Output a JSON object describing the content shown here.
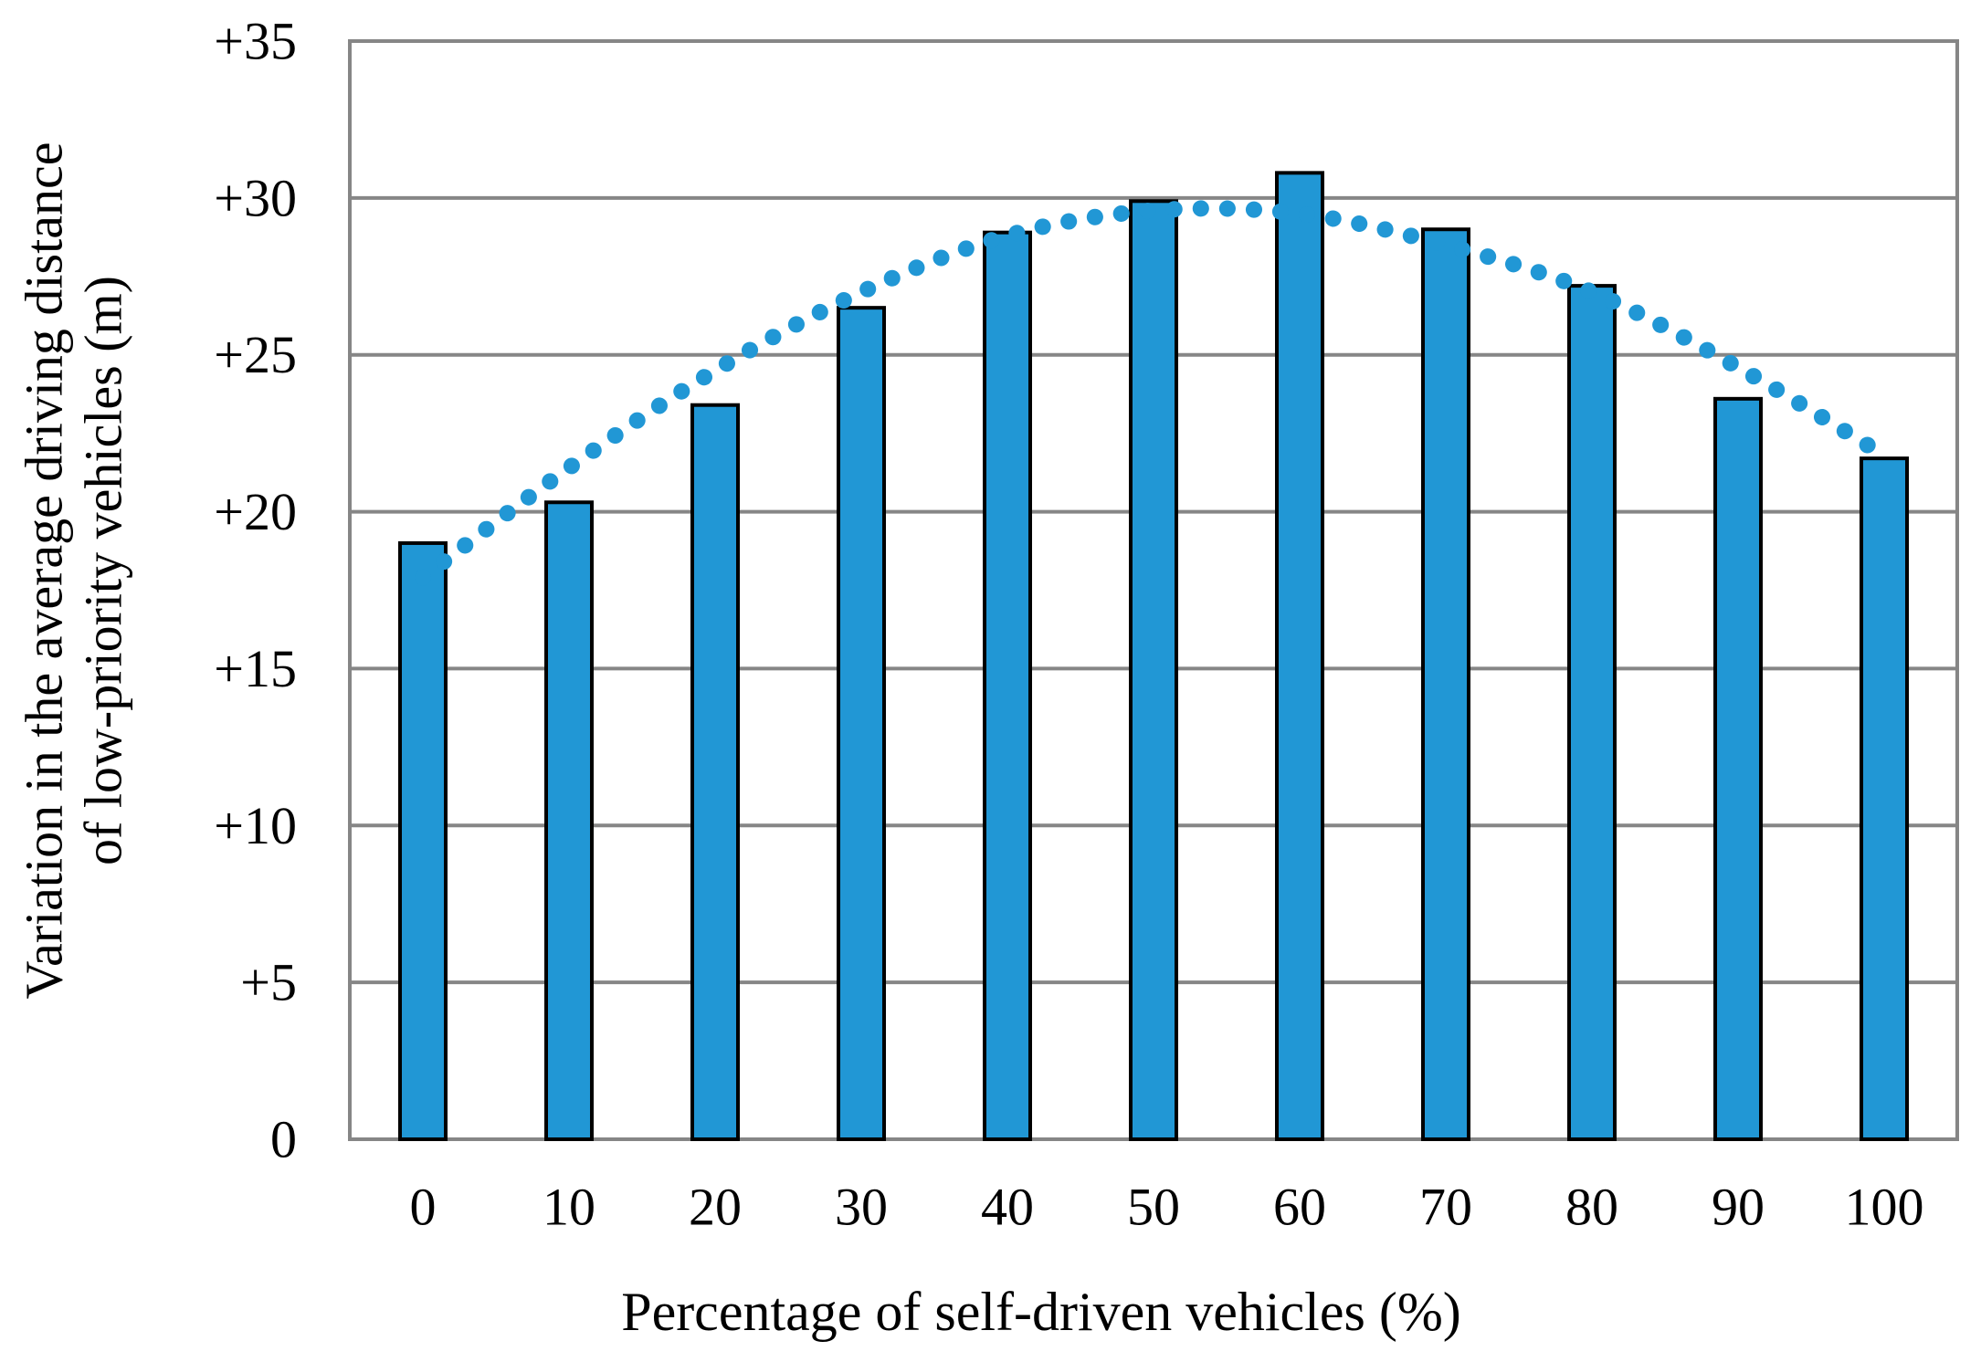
{
  "figure": {
    "background": "#FFFFFF"
  },
  "chart_data": {
    "type": "bar",
    "title": "",
    "categories": [
      "0",
      "10",
      "20",
      "30",
      "40",
      "50",
      "60",
      "70",
      "80",
      "90",
      "100"
    ],
    "series": [
      {
        "name": "variation-bars",
        "type": "bar",
        "values": [
          19.0,
          20.3,
          23.4,
          26.5,
          28.9,
          29.9,
          30.8,
          29.0,
          27.2,
          23.6,
          21.7
        ]
      },
      {
        "name": "polynomial-trendline",
        "type": "dotted-line",
        "values": [
          17.9,
          21.4,
          24.5,
          27.0,
          28.8,
          29.6,
          29.5,
          28.5,
          27.0,
          24.6,
          21.8
        ]
      }
    ],
    "xlabel": "Percentage of self-driven vehicles (%)",
    "ylabel_line1": "Variation in the average driving distance",
    "ylabel_line2": "of low-priority vehicles (m)",
    "ylim": [
      0,
      35
    ],
    "ytick_interval": 5,
    "ytick_labels": [
      "0",
      "+5",
      "+10",
      "+15",
      "+20",
      "+25",
      "+30",
      "+35"
    ],
    "grid": "horizontal-only",
    "legend": "none",
    "colors": {
      "bar_fill": "#2197D5",
      "bar_border": "#000000",
      "trend_dots": "#2197D5",
      "gridline": "#868686",
      "plot_border": "#868686",
      "text": "#000000",
      "background": "#FFFFFF"
    }
  }
}
